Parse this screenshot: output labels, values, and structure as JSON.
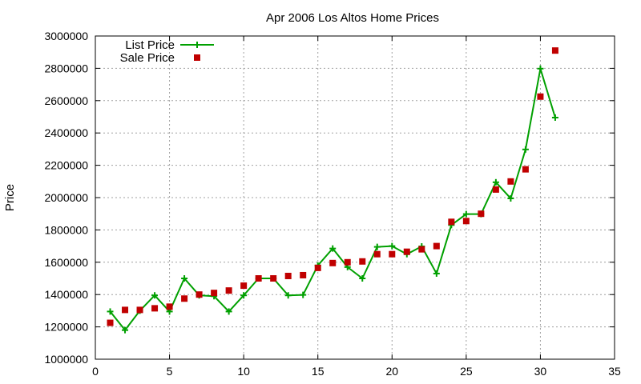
{
  "chart_data": {
    "type": "line",
    "title": "Apr 2006 Los Altos Home Prices",
    "ylabel": "Price",
    "xlabel": "",
    "xlim": [
      0,
      35
    ],
    "ylim": [
      1000000,
      3000000
    ],
    "xticks": [
      0,
      5,
      10,
      15,
      20,
      25,
      30,
      35
    ],
    "yticks": [
      1000000,
      1200000,
      1400000,
      1600000,
      1800000,
      2000000,
      2200000,
      2400000,
      2600000,
      2800000,
      3000000
    ],
    "grid": true,
    "legend_position": "top-left",
    "series": [
      {
        "name": "List Price",
        "style": "line+cross",
        "color": "#00a000",
        "x": [
          1,
          2,
          3,
          4,
          5,
          6,
          7,
          8,
          9,
          10,
          11,
          12,
          13,
          14,
          15,
          16,
          17,
          18,
          19,
          20,
          21,
          22,
          23,
          24,
          25,
          26,
          27,
          28,
          29,
          30,
          31
        ],
        "y": [
          1295000,
          1180000,
          1300000,
          1395000,
          1295000,
          1500000,
          1395000,
          1390000,
          1295000,
          1395000,
          1500000,
          1500000,
          1395000,
          1398000,
          1580000,
          1685000,
          1570000,
          1500000,
          1695000,
          1700000,
          1650000,
          1698000,
          1530000,
          1830000,
          1898000,
          1898000,
          2095000,
          1995000,
          2298000,
          2798000,
          2495000
        ]
      },
      {
        "name": "Sale Price",
        "style": "square",
        "color": "#c00000",
        "x": [
          1,
          2,
          3,
          4,
          5,
          6,
          7,
          8,
          9,
          10,
          11,
          12,
          13,
          14,
          15,
          16,
          17,
          18,
          19,
          20,
          21,
          22,
          23,
          24,
          25,
          26,
          27,
          28,
          29,
          30,
          31
        ],
        "y": [
          1225000,
          1305000,
          1305000,
          1315000,
          1325000,
          1375000,
          1400000,
          1410000,
          1425000,
          1455000,
          1500000,
          1500000,
          1515000,
          1520000,
          1565000,
          1595000,
          1600000,
          1605000,
          1650000,
          1650000,
          1665000,
          1680000,
          1700000,
          1850000,
          1855000,
          1900000,
          2050000,
          2100000,
          2175000,
          2625000,
          2910000
        ]
      }
    ]
  }
}
